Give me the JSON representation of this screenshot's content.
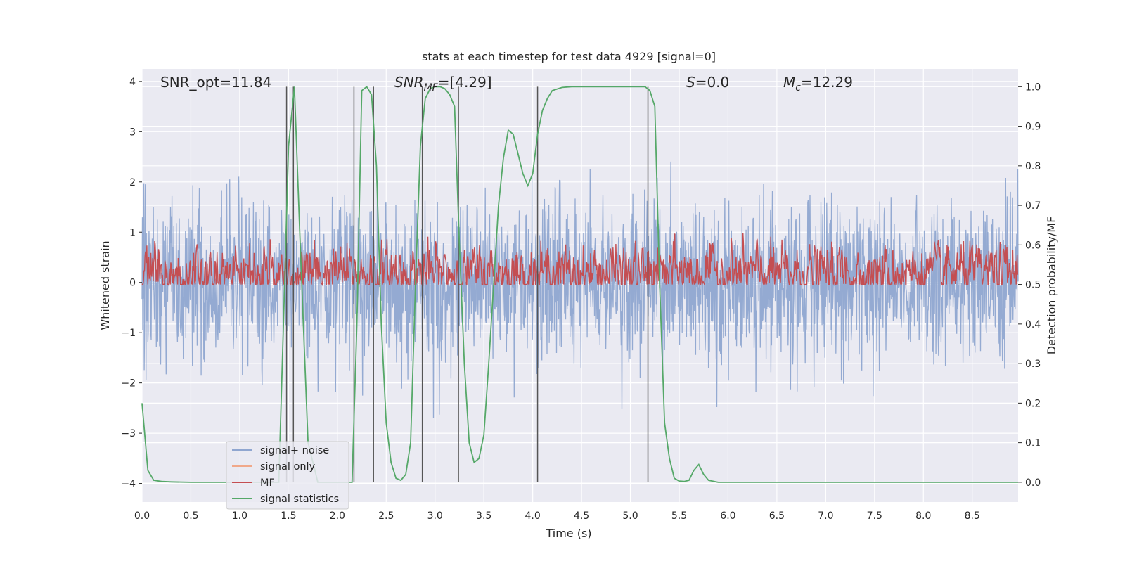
{
  "chart_data": {
    "type": "line",
    "title": "stats at each timestep for test data 4929 [signal=0]",
    "xlabel": "Time (s)",
    "ylabel_left": "Whitened strain",
    "ylabel_right": "Detection probability/MF",
    "xlim": [
      0.0,
      8.97
    ],
    "ylim_left": [
      -4.37,
      4.25
    ],
    "ylim_right": [
      -0.05,
      1.045
    ],
    "xticks": [
      "0.0",
      "0.5",
      "1.0",
      "1.5",
      "2.0",
      "2.5",
      "3.0",
      "3.5",
      "4.0",
      "4.5",
      "5.0",
      "5.5",
      "6.0",
      "6.5",
      "7.0",
      "7.5",
      "8.0",
      "8.5"
    ],
    "yticks_left": [
      "4",
      "3",
      "2",
      "1",
      "0",
      "−1",
      "−2",
      "−3",
      "−4"
    ],
    "yticks_right": [
      "1.0",
      "0.9",
      "0.8",
      "0.7",
      "0.6",
      "0.5",
      "0.4",
      "0.3",
      "0.2",
      "0.1",
      "0.0"
    ],
    "grid": true,
    "legend_position": "lower-left",
    "annotations": {
      "snr_opt": "SNR_opt=11.84",
      "snr_mf_base": "SNR",
      "snr_mf_sub": "MF",
      "snr_mf_val": "=[4.29]",
      "s_sym": "S",
      "s_val": "=0.0",
      "mc_sym": "M",
      "mc_sub": "c",
      "mc_val": "=12.29"
    },
    "series": [
      {
        "name": "signal+ noise",
        "color": "#8fa6d0",
        "axis": "left",
        "amplitude_sd": 0.8,
        "peak_range": [
          -3.9,
          3.4
        ]
      },
      {
        "name": "signal only",
        "color": "#f0a88a",
        "axis": "left",
        "values": []
      },
      {
        "name": "MF",
        "color": "#c44e52",
        "axis": "right",
        "baseline": 0.53,
        "range": [
          0.5,
          0.63
        ]
      },
      {
        "name": "signal statistics",
        "color": "#55a868",
        "axis": "right",
        "x": [
          0.0,
          0.06,
          0.12,
          0.2,
          0.3,
          0.5,
          1.0,
          1.4,
          1.46,
          1.5,
          1.56,
          1.62,
          1.7,
          1.8,
          2.0,
          2.15,
          2.2,
          2.25,
          2.3,
          2.35,
          2.4,
          2.45,
          2.5,
          2.55,
          2.6,
          2.65,
          2.7,
          2.75,
          2.8,
          2.85,
          2.9,
          2.95,
          3.0,
          3.05,
          3.1,
          3.15,
          3.2,
          3.25,
          3.3,
          3.35,
          3.4,
          3.45,
          3.5,
          3.55,
          3.6,
          3.65,
          3.7,
          3.75,
          3.8,
          3.85,
          3.9,
          3.95,
          4.0,
          4.05,
          4.1,
          4.15,
          4.2,
          4.3,
          4.4,
          4.5,
          4.8,
          5.0,
          5.15,
          5.2,
          5.25,
          5.3,
          5.35,
          5.4,
          5.45,
          5.5,
          5.55,
          5.6,
          5.65,
          5.7,
          5.75,
          5.8,
          5.9,
          6.2,
          7.0,
          8.0,
          8.97
        ],
        "values": [
          0.2,
          0.03,
          0.005,
          0.002,
          0.001,
          0.0,
          0.0,
          0.0,
          0.5,
          0.85,
          1.0,
          0.6,
          0.1,
          0.0,
          0.0,
          0.0,
          0.4,
          0.99,
          1.0,
          0.98,
          0.8,
          0.4,
          0.15,
          0.05,
          0.01,
          0.005,
          0.02,
          0.1,
          0.5,
          0.85,
          0.97,
          0.995,
          1.0,
          1.0,
          0.995,
          0.98,
          0.95,
          0.6,
          0.3,
          0.1,
          0.05,
          0.06,
          0.12,
          0.3,
          0.5,
          0.7,
          0.82,
          0.89,
          0.88,
          0.83,
          0.78,
          0.75,
          0.78,
          0.88,
          0.94,
          0.97,
          0.99,
          0.998,
          1.0,
          1.0,
          1.0,
          1.0,
          1.0,
          0.99,
          0.95,
          0.5,
          0.15,
          0.06,
          0.01,
          0.003,
          0.002,
          0.005,
          0.03,
          0.045,
          0.02,
          0.005,
          0.0,
          0.0,
          0.0,
          0.0,
          0.0
        ]
      }
    ],
    "vertical_lines_x": [
      1.48,
      1.55,
      2.17,
      2.37,
      2.87,
      3.24,
      4.05,
      5.18
    ],
    "vertical_lines_color": "#555555"
  }
}
